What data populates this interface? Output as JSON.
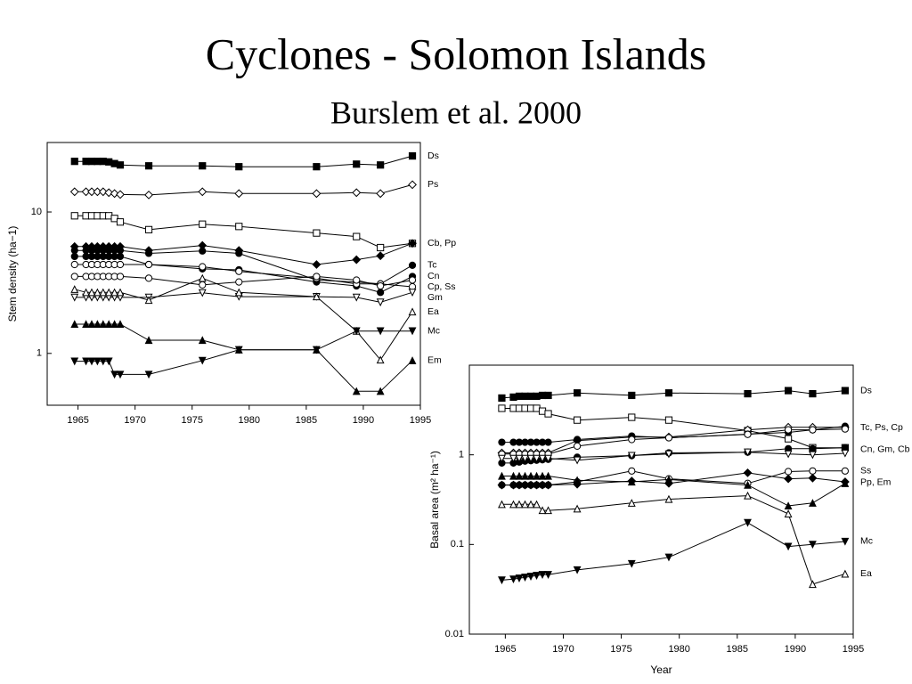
{
  "slide": {
    "title": "Cyclones - Solomon Islands",
    "subtitle": "Burslem et al. 2000"
  },
  "chart_data": [
    {
      "type": "line",
      "ylabel": "Stem density (ha−1)",
      "log_y": true,
      "color": "#000000",
      "x": [
        1964.7,
        1965.7,
        1966.2,
        1966.7,
        1967.2,
        1967.7,
        1968.2,
        1968.7,
        1971.2,
        1975.9,
        1979.1,
        1985.9,
        1989.4,
        1991.5,
        1994.3
      ],
      "xlim": [
        1962.3,
        1995
      ],
      "xticks": [
        1965,
        1970,
        1975,
        1980,
        1985,
        1990,
        1995
      ],
      "ylim": [
        0.43,
        31
      ],
      "yticks": [
        1,
        10
      ],
      "series_labels": [
        "Ds",
        "Ps",
        "Cb, Pp",
        "Tc",
        "Cn",
        "Cp, Ss",
        "Gm",
        "Ea",
        "Mc",
        "Em"
      ],
      "series": [
        {
          "name": "Ds",
          "marker": "square",
          "filled": true,
          "values": [
            22.8,
            22.8,
            22.8,
            22.8,
            22.8,
            22.6,
            22,
            21.5,
            21.2,
            21.2,
            20.9,
            20.9,
            21.8,
            21.5,
            24.9
          ]
        },
        {
          "name": "Ps",
          "marker": "diamond",
          "filled": false,
          "values": [
            13.9,
            13.9,
            13.9,
            13.9,
            13.9,
            13.7,
            13.5,
            13.3,
            13.2,
            13.9,
            13.5,
            13.5,
            13.7,
            13.5,
            15.6
          ]
        },
        {
          "name": "Cb",
          "marker": "square",
          "filled": false,
          "values": [
            9.4,
            9.4,
            9.4,
            9.4,
            9.4,
            9.4,
            9.0,
            8.5,
            7.5,
            8.2,
            7.9,
            7.1,
            6.7,
            5.6,
            6.0
          ]
        },
        {
          "name": "Pp",
          "marker": "diamond",
          "filled": true,
          "values": [
            5.7,
            5.7,
            5.7,
            5.7,
            5.7,
            5.7,
            5.7,
            5.7,
            5.35,
            5.8,
            5.35,
            4.25,
            4.6,
            4.9,
            6.0
          ]
        },
        {
          "name": "Tc",
          "marker": "circle",
          "filled": true,
          "values": [
            5.35,
            5.35,
            5.35,
            5.35,
            5.35,
            5.35,
            5.35,
            5.35,
            5.1,
            5.3,
            5.1,
            3.3,
            3.2,
            3.1,
            4.2
          ]
        },
        {
          "name": "Cn",
          "marker": "circle",
          "filled": true,
          "values": [
            4.85,
            4.85,
            4.85,
            4.85,
            4.85,
            4.85,
            4.85,
            4.85,
            4.25,
            3.96,
            3.9,
            3.2,
            3.0,
            2.7,
            3.5
          ]
        },
        {
          "name": "Cp",
          "marker": "circle",
          "filled": false,
          "values": [
            4.25,
            4.25,
            4.25,
            4.25,
            4.25,
            4.25,
            4.25,
            4.25,
            4.25,
            4.1,
            3.8,
            3.4,
            3.1,
            3.1,
            2.96
          ]
        },
        {
          "name": "Ss",
          "marker": "circle",
          "filled": false,
          "values": [
            3.5,
            3.5,
            3.5,
            3.5,
            3.5,
            3.5,
            3.5,
            3.5,
            3.4,
            3.05,
            3.2,
            3.5,
            3.3,
            3.0,
            3.3
          ]
        },
        {
          "name": "Gm",
          "marker": "triangle-down",
          "filled": false,
          "values": [
            2.49,
            2.49,
            2.49,
            2.49,
            2.49,
            2.49,
            2.49,
            2.49,
            2.49,
            2.68,
            2.52,
            2.52,
            2.49,
            2.3,
            2.7
          ]
        },
        {
          "name": "Ea",
          "marker": "triangle-up",
          "filled": false,
          "values": [
            2.84,
            2.7,
            2.7,
            2.7,
            2.7,
            2.7,
            2.7,
            2.7,
            2.38,
            3.4,
            2.7,
            2.52,
            1.44,
            0.9,
            1.97
          ]
        },
        {
          "name": "Mc",
          "marker": "triangle-down",
          "filled": true,
          "values": [
            0.88,
            0.88,
            0.88,
            0.88,
            0.88,
            0.88,
            0.71,
            0.71,
            0.71,
            0.89,
            1.06,
            1.06,
            1.44,
            1.44,
            1.44
          ]
        },
        {
          "name": "Em",
          "marker": "triangle-up",
          "filled": true,
          "values": [
            1.61,
            1.61,
            1.61,
            1.61,
            1.61,
            1.61,
            1.61,
            1.61,
            1.24,
            1.24,
            1.06,
            1.06,
            0.54,
            0.54,
            0.89
          ]
        }
      ]
    },
    {
      "type": "line",
      "xlabel": "Year",
      "ylabel": "Basal area (m² ha⁻¹)",
      "log_y": true,
      "color": "#000000",
      "x": [
        1964.7,
        1965.7,
        1966.2,
        1966.7,
        1967.2,
        1967.7,
        1968.2,
        1968.7,
        1971.2,
        1975.9,
        1979.1,
        1985.9,
        1989.4,
        1991.5,
        1994.3
      ],
      "xlim": [
        1961.9,
        1995
      ],
      "xticks": [
        1965,
        1970,
        1975,
        1980,
        1985,
        1990,
        1995
      ],
      "ylim": [
        0.01,
        10
      ],
      "yticks": [
        0.01,
        0.1,
        1
      ],
      "series_labels": [
        "Ds",
        "Tc, Ps, Cp",
        "Cn, Gm, Cb",
        "Ss",
        "Pp, Em",
        "Mc",
        "Ea"
      ],
      "series": [
        {
          "name": "Ds",
          "marker": "square",
          "filled": true,
          "values": [
            4.3,
            4.4,
            4.5,
            4.5,
            4.5,
            4.5,
            4.6,
            4.6,
            4.9,
            4.6,
            4.9,
            4.8,
            5.2,
            4.8,
            5.2
          ]
        },
        {
          "name": "Cb",
          "marker": "square",
          "filled": false,
          "values": [
            3.3,
            3.3,
            3.3,
            3.3,
            3.3,
            3.3,
            3.07,
            2.87,
            2.44,
            2.62,
            2.44,
            1.86,
            1.51,
            1.2,
            1.2
          ]
        },
        {
          "name": "Ps",
          "marker": "diamond",
          "filled": false,
          "values": [
            1.05,
            1.05,
            1.05,
            1.05,
            1.05,
            1.05,
            1.05,
            1.05,
            1.44,
            1.58,
            1.58,
            1.9,
            2.03,
            2.03,
            2.03
          ]
        },
        {
          "name": "Tc",
          "marker": "circle",
          "filled": true,
          "values": [
            1.38,
            1.38,
            1.38,
            1.38,
            1.38,
            1.38,
            1.38,
            1.38,
            1.48,
            1.62,
            1.55,
            1.7,
            1.78,
            1.9,
            2.08
          ]
        },
        {
          "name": "Cp",
          "marker": "circle",
          "filled": false,
          "values": [
            1.02,
            1.02,
            1.02,
            1.02,
            1.02,
            1.02,
            1.02,
            1.02,
            1.25,
            1.48,
            1.55,
            1.69,
            1.9,
            1.9,
            1.94
          ]
        },
        {
          "name": "Cn",
          "marker": "circle",
          "filled": true,
          "values": [
            0.81,
            0.81,
            0.83,
            0.85,
            0.86,
            0.87,
            0.88,
            0.89,
            0.94,
            0.98,
            1.05,
            1.07,
            1.17,
            1.17,
            1.2
          ]
        },
        {
          "name": "Gm",
          "marker": "triangle-down",
          "filled": false,
          "values": [
            0.91,
            0.91,
            0.91,
            0.91,
            0.91,
            0.91,
            0.91,
            0.91,
            0.87,
            0.98,
            1.02,
            1.07,
            1.02,
            1.0,
            1.04
          ]
        },
        {
          "name": "Ss",
          "marker": "circle",
          "filled": false,
          "values": [
            0.46,
            0.46,
            0.46,
            0.46,
            0.46,
            0.46,
            0.46,
            0.46,
            0.5,
            0.66,
            0.54,
            0.48,
            0.65,
            0.66,
            0.66
          ]
        },
        {
          "name": "Pp",
          "marker": "diamond",
          "filled": true,
          "values": [
            0.46,
            0.46,
            0.46,
            0.46,
            0.46,
            0.46,
            0.46,
            0.46,
            0.47,
            0.51,
            0.48,
            0.63,
            0.54,
            0.55,
            0.5
          ]
        },
        {
          "name": "Em",
          "marker": "triangle-up",
          "filled": true,
          "values": [
            0.58,
            0.58,
            0.58,
            0.58,
            0.58,
            0.58,
            0.58,
            0.58,
            0.52,
            0.5,
            0.53,
            0.46,
            0.27,
            0.29,
            0.48
          ]
        },
        {
          "name": "Ea",
          "marker": "triangle-up",
          "filled": false,
          "values": [
            0.28,
            0.28,
            0.28,
            0.28,
            0.28,
            0.28,
            0.24,
            0.24,
            0.25,
            0.29,
            0.32,
            0.35,
            0.22,
            0.036,
            0.047
          ]
        },
        {
          "name": "Mc",
          "marker": "triangle-down",
          "filled": true,
          "values": [
            0.04,
            0.041,
            0.042,
            0.043,
            0.044,
            0.045,
            0.046,
            0.046,
            0.052,
            0.061,
            0.072,
            0.175,
            0.095,
            0.1,
            0.108
          ]
        }
      ]
    }
  ]
}
